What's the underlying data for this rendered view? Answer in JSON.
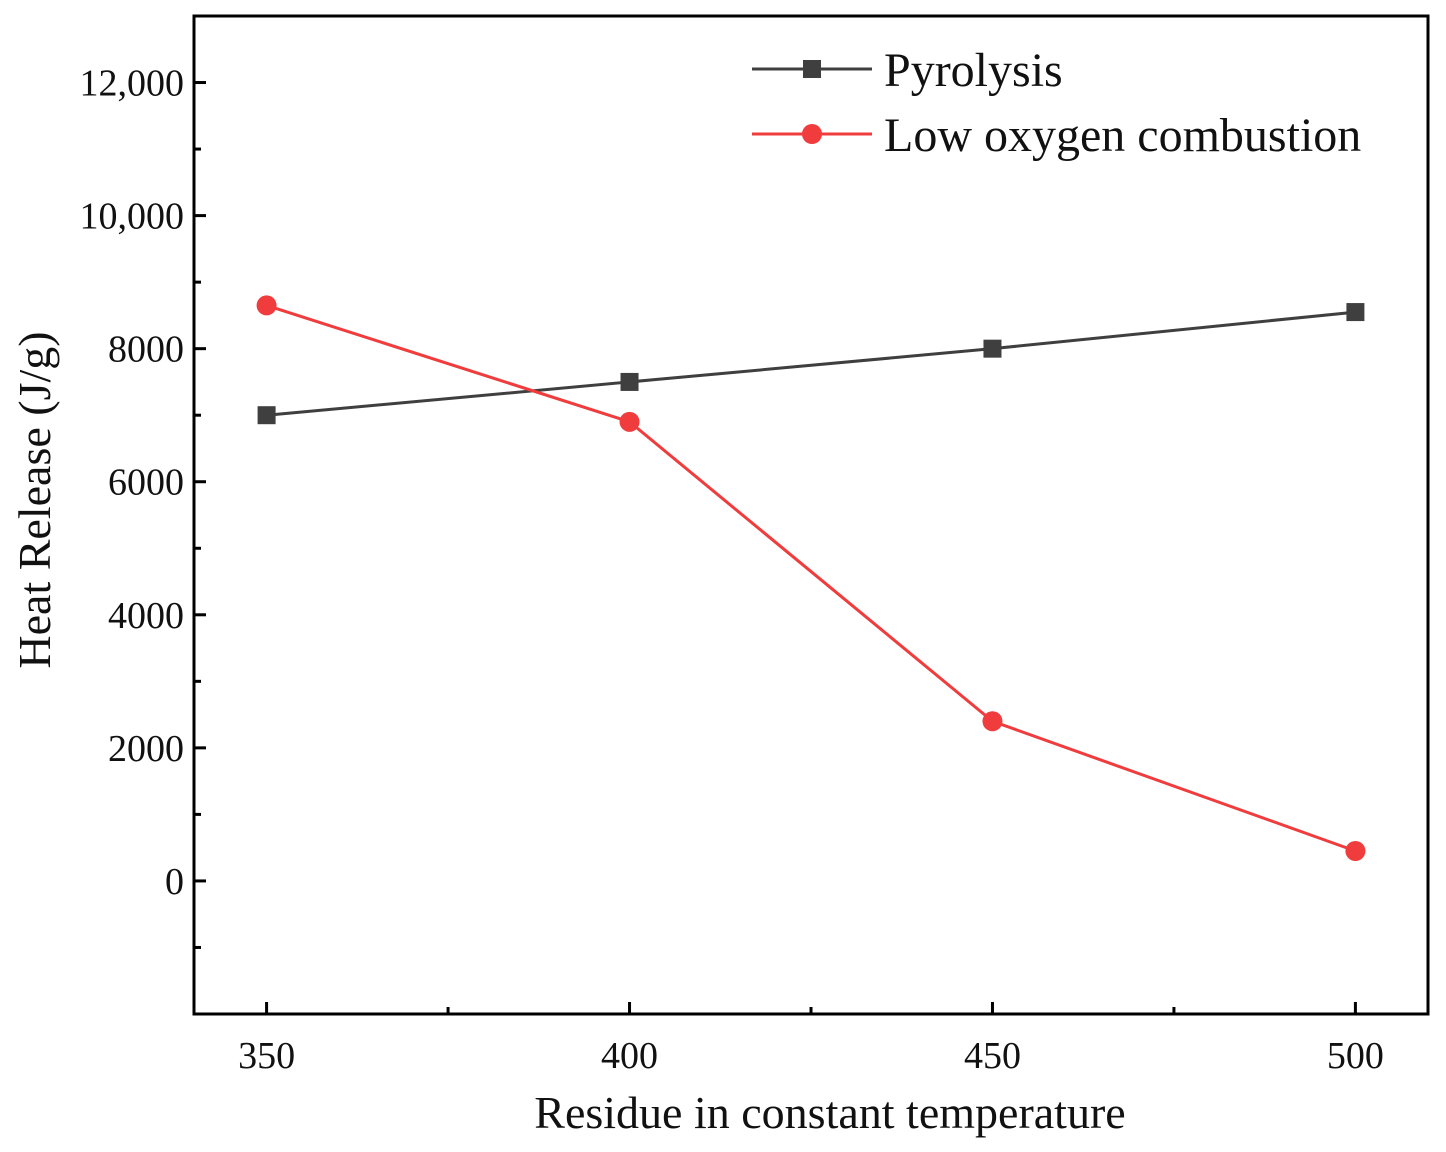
{
  "chart_data": {
    "type": "line",
    "xlabel": "Residue in constant temperature",
    "ylabel": "Heat Release (J/g)",
    "x": [
      350,
      400,
      450,
      500
    ],
    "xlim": [
      340,
      510
    ],
    "ylim": [
      -2000,
      13000
    ],
    "x_ticks": [
      {
        "value": 350,
        "label": "350"
      },
      {
        "value": 400,
        "label": "400"
      },
      {
        "value": 450,
        "label": "450"
      },
      {
        "value": 500,
        "label": "500"
      }
    ],
    "y_ticks": [
      {
        "value": 0,
        "label": "0"
      },
      {
        "value": 2000,
        "label": "2000"
      },
      {
        "value": 4000,
        "label": "4000"
      },
      {
        "value": 6000,
        "label": "6000"
      },
      {
        "value": 8000,
        "label": "8000"
      },
      {
        "value": 10000,
        "label": "10,000"
      },
      {
        "value": 12000,
        "label": "12,000"
      }
    ],
    "legend_position": "top-right",
    "series": [
      {
        "name": "Pyrolysis",
        "color": "#3f3f3f",
        "marker": "square",
        "values": [
          7000,
          7500,
          8000,
          8550
        ]
      },
      {
        "name": "Low oxygen combustion",
        "color": "#f03c3c",
        "marker": "circle",
        "values": [
          8650,
          6900,
          2400,
          450
        ]
      }
    ]
  }
}
